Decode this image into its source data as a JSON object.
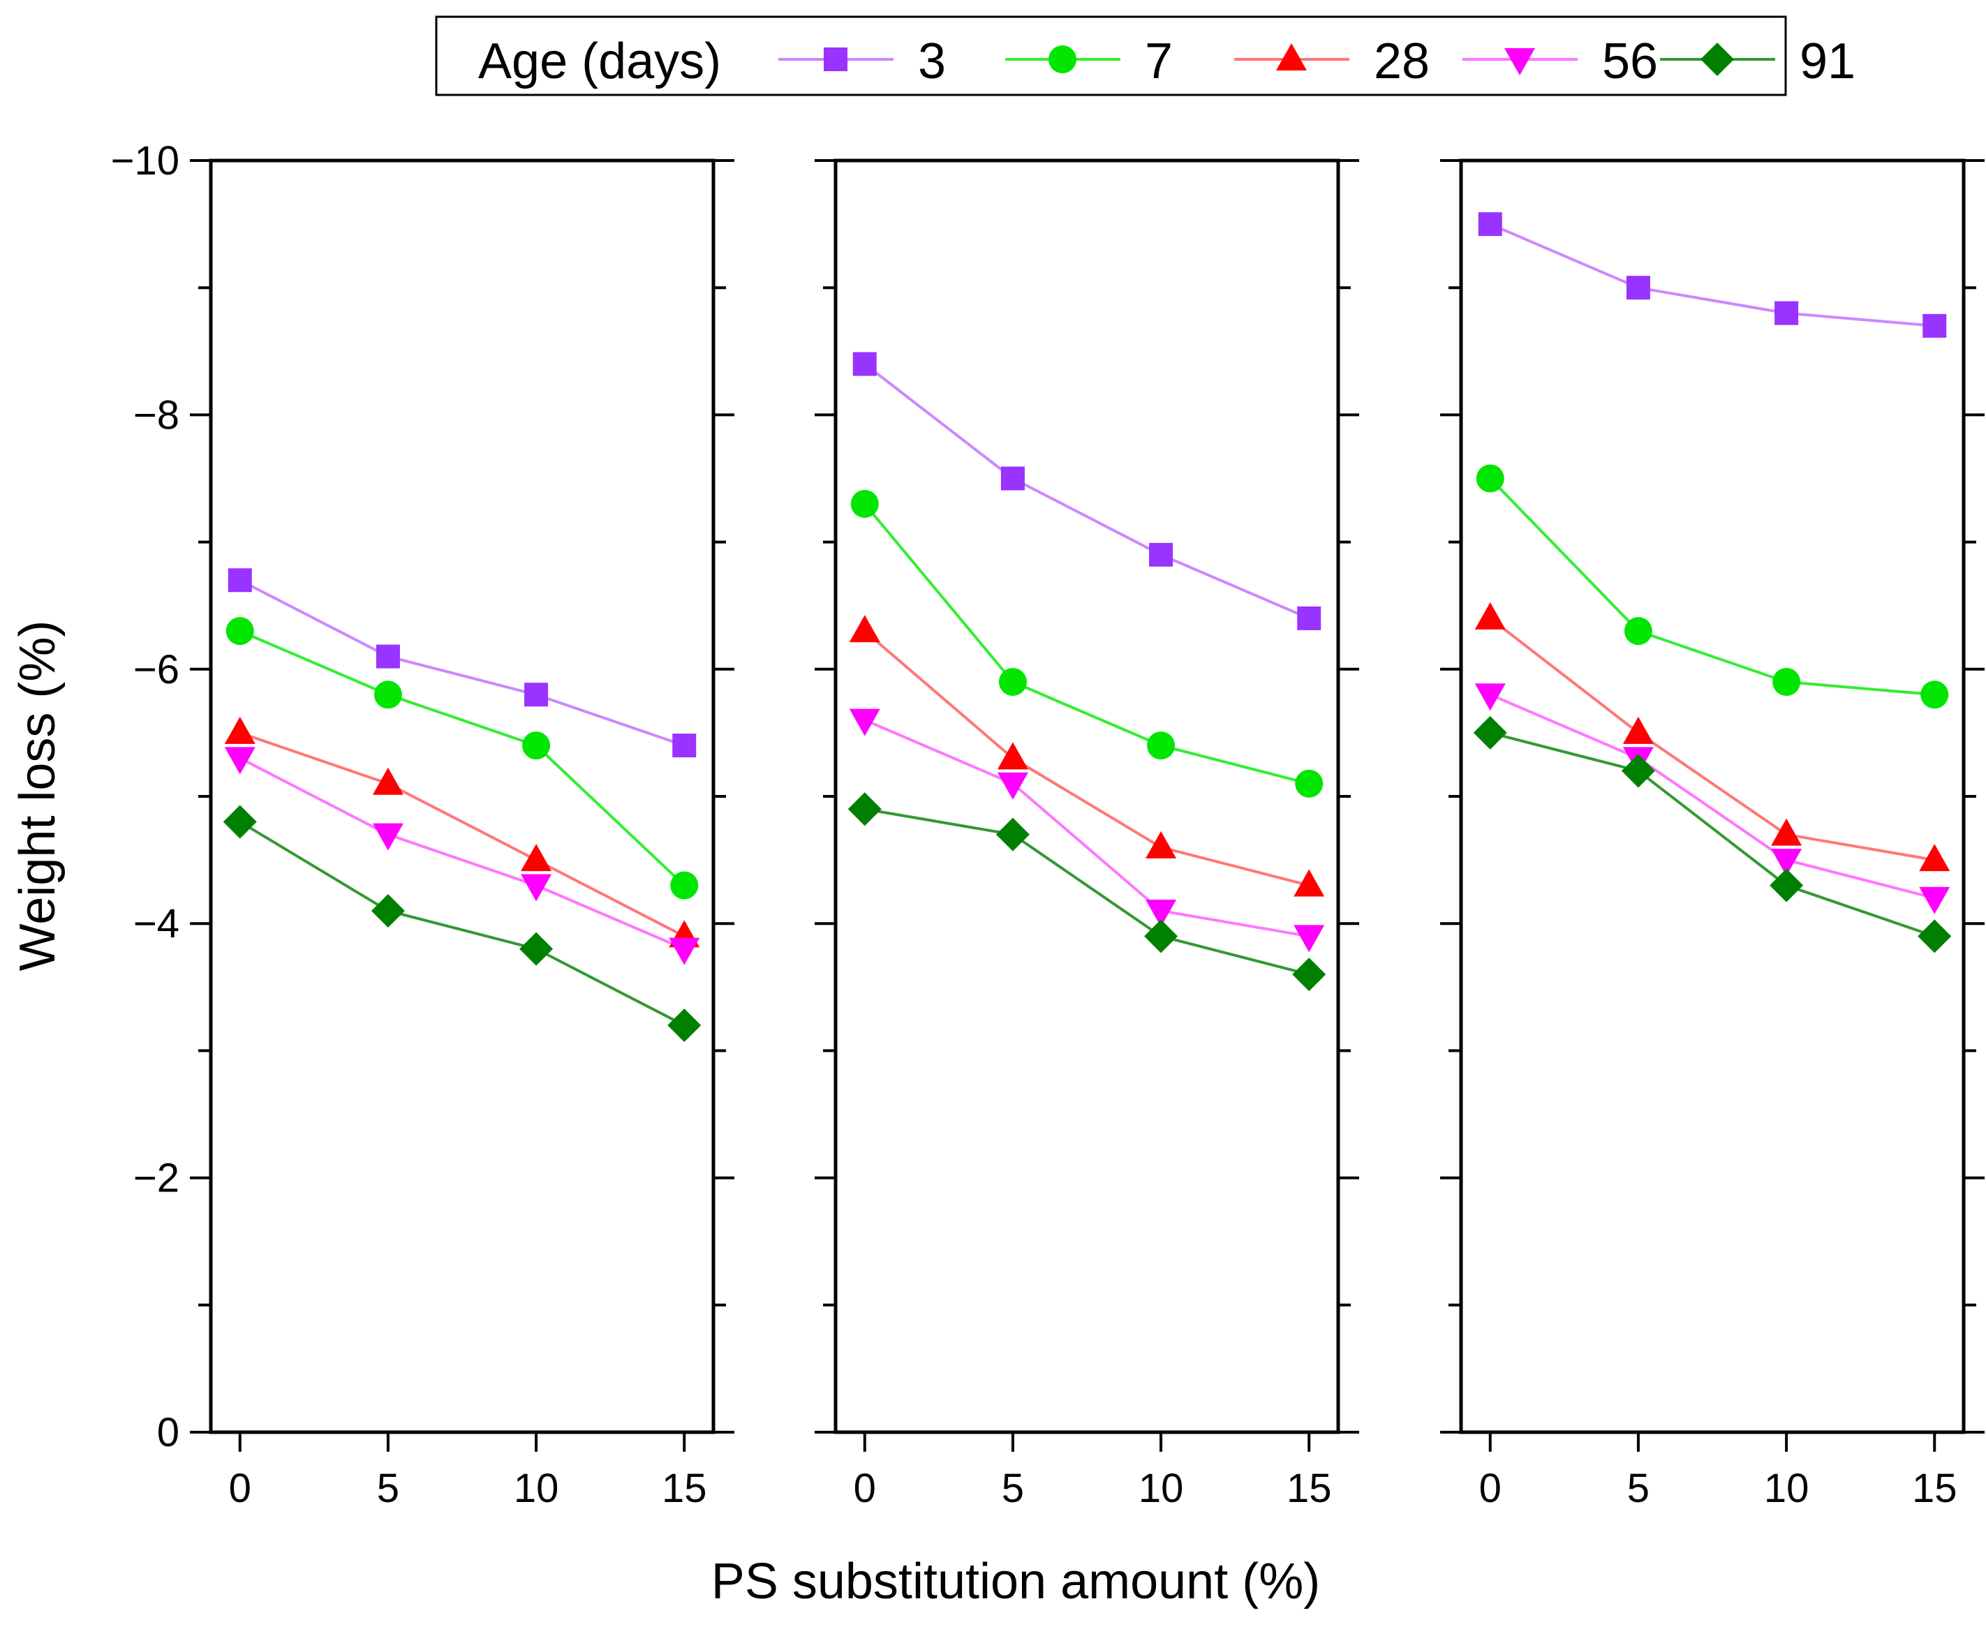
{
  "chart_data": {
    "type": "line",
    "ylabel": "Weight loss (%)",
    "xlabel": "PS substitution amount (%)",
    "x": [
      0,
      5,
      10,
      15
    ],
    "x_tick_labels": [
      "0",
      "5",
      "10",
      "15"
    ],
    "ylim": [
      0,
      -10
    ],
    "y_ticks": [
      0,
      -2,
      -4,
      -6,
      -8,
      -10
    ],
    "y_tick_labels": [
      "0",
      "−2",
      "−4",
      "−6",
      "−8",
      "−10"
    ],
    "legend": {
      "title": "Age (days)",
      "position": "top-center",
      "entries": [
        "3",
        "7",
        "28",
        "56",
        "91"
      ]
    },
    "series_styles": [
      {
        "name": "3",
        "color": "#9933ff",
        "marker": "square"
      },
      {
        "name": "7",
        "color": "#00e600",
        "marker": "circle"
      },
      {
        "name": "28",
        "color": "#ff0000",
        "marker": "triangle-up"
      },
      {
        "name": "56",
        "color": "#ff00ff",
        "marker": "triangle-down"
      },
      {
        "name": "91",
        "color": "#008000",
        "marker": "diamond"
      }
    ],
    "line_colors": {
      "3": "#cc88ff",
      "7": "#33ee33",
      "28": "#ff7777",
      "56": "#ff77ff",
      "91": "#339933"
    },
    "panels": [
      {
        "series": [
          {
            "name": "3",
            "values": [
              -6.7,
              -6.1,
              -5.8,
              -5.4
            ]
          },
          {
            "name": "7",
            "values": [
              -6.3,
              -5.8,
              -5.4,
              -4.3
            ]
          },
          {
            "name": "28",
            "values": [
              -5.5,
              -5.1,
              -4.5,
              -3.9
            ]
          },
          {
            "name": "56",
            "values": [
              -5.3,
              -4.7,
              -4.3,
              -3.8
            ]
          },
          {
            "name": "91",
            "values": [
              -4.8,
              -4.1,
              -3.8,
              -3.2
            ]
          }
        ]
      },
      {
        "series": [
          {
            "name": "3",
            "values": [
              -8.4,
              -7.5,
              -6.9,
              -6.4
            ]
          },
          {
            "name": "7",
            "values": [
              -7.3,
              -5.9,
              -5.4,
              -5.1
            ]
          },
          {
            "name": "28",
            "values": [
              -6.3,
              -5.3,
              -4.6,
              -4.3
            ]
          },
          {
            "name": "56",
            "values": [
              -5.6,
              -5.1,
              -4.1,
              -3.9
            ]
          },
          {
            "name": "91",
            "values": [
              -4.9,
              -4.7,
              -3.9,
              -3.6
            ]
          }
        ]
      },
      {
        "series": [
          {
            "name": "3",
            "values": [
              -9.5,
              -9.0,
              -8.8,
              -8.7
            ]
          },
          {
            "name": "7",
            "values": [
              -7.5,
              -6.3,
              -5.9,
              -5.8
            ]
          },
          {
            "name": "28",
            "values": [
              -6.4,
              -5.5,
              -4.7,
              -4.5
            ]
          },
          {
            "name": "56",
            "values": [
              -5.8,
              -5.3,
              -4.5,
              -4.2
            ]
          },
          {
            "name": "91",
            "values": [
              -5.5,
              -5.2,
              -4.3,
              -3.9
            ]
          }
        ]
      }
    ]
  }
}
